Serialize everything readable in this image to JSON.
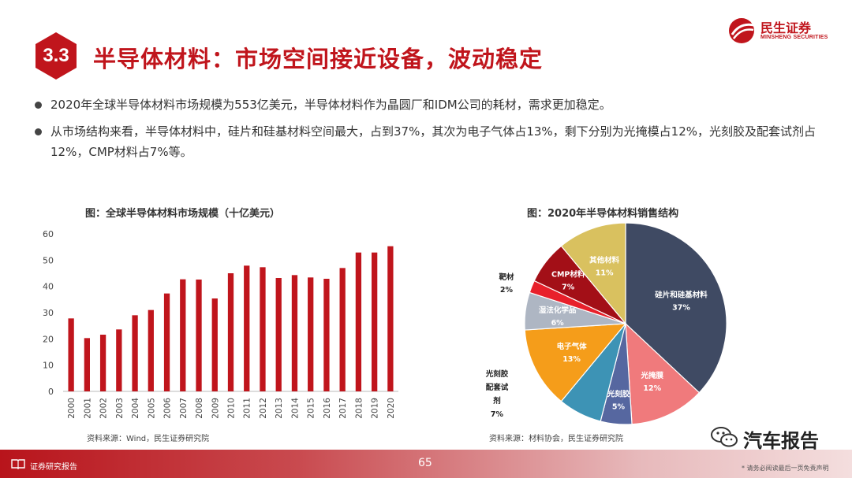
{
  "header": {
    "section_number": "3.3",
    "title": "半导体材料：市场空间接近设备，波动稳定",
    "logo_cn": "民生证券",
    "logo_en": "MINSHENG SECURITIES"
  },
  "bullets": [
    "2020年全球半导体材料市场规模为553亿美元，半导体材料作为晶圆厂和IDM公司的耗材，需求更加稳定。",
    "从市场结构来看，半导体材料中，硅片和硅基材料空间最大，占到37%，其次为电子气体占13%，剩下分别为光掩模占12%，光刻胶及配套试剂占12%，CMP材料占7%等。"
  ],
  "chart_data": [
    {
      "type": "bar",
      "title": "图：全球半导体材料市场规模（十亿美元）",
      "categories": [
        "2000",
        "2001",
        "2002",
        "2003",
        "2004",
        "2005",
        "2006",
        "2007",
        "2008",
        "2009",
        "2010",
        "2011",
        "2012",
        "2013",
        "2014",
        "2015",
        "2016",
        "2017",
        "2018",
        "2019",
        "2020"
      ],
      "values": [
        27.8,
        20.3,
        21.6,
        23.6,
        29.0,
        31.0,
        37.3,
        42.7,
        42.6,
        35.4,
        45.0,
        47.9,
        47.3,
        43.2,
        44.3,
        43.4,
        42.9,
        47.0,
        52.9,
        52.9,
        55.3
      ],
      "ylim": [
        0,
        60
      ],
      "yticks": [
        "0",
        "10",
        "20",
        "30",
        "40",
        "50",
        "60"
      ],
      "grid": false,
      "color": "#c0151c",
      "source": "资料来源：Wind，民生证券研究院"
    },
    {
      "type": "pie",
      "title": "图：2020年半导体材料销售结构",
      "slices": [
        {
          "label": "硅片和硅基材料",
          "pct_label": "37%",
          "value": 37,
          "color": "#3f4a63"
        },
        {
          "label": "光掩膜",
          "pct_label": "12%",
          "value": 12,
          "color": "#f07a7c"
        },
        {
          "label": "光刻胶",
          "pct_label": "5%",
          "value": 5,
          "color": "#5667a0"
        },
        {
          "label": "光刻胶配套试剂",
          "pct_label": "7%",
          "value": 7,
          "color": "#3d93b5"
        },
        {
          "label": "电子气体",
          "pct_label": "13%",
          "value": 13,
          "color": "#f59d1a"
        },
        {
          "label": "湿法化学品",
          "pct_label": "6%",
          "value": 6,
          "color": "#aeb6c3"
        },
        {
          "label": "靶材",
          "pct_label": "2%",
          "value": 2,
          "color": "#e8202b"
        },
        {
          "label": "CMP材料",
          "pct_label": "7%",
          "value": 7,
          "color": "#a30f17"
        },
        {
          "label": "其他材料",
          "pct_label": "11%",
          "value": 11,
          "color": "#d9c15f"
        }
      ],
      "source": "资料来源：材料协会，民生证券研究院"
    }
  ],
  "footer": {
    "label": "证券研究报告",
    "page": "65",
    "watermark": "汽车报告",
    "disclaimer": "* 请务必阅读最后一页免责声明"
  }
}
